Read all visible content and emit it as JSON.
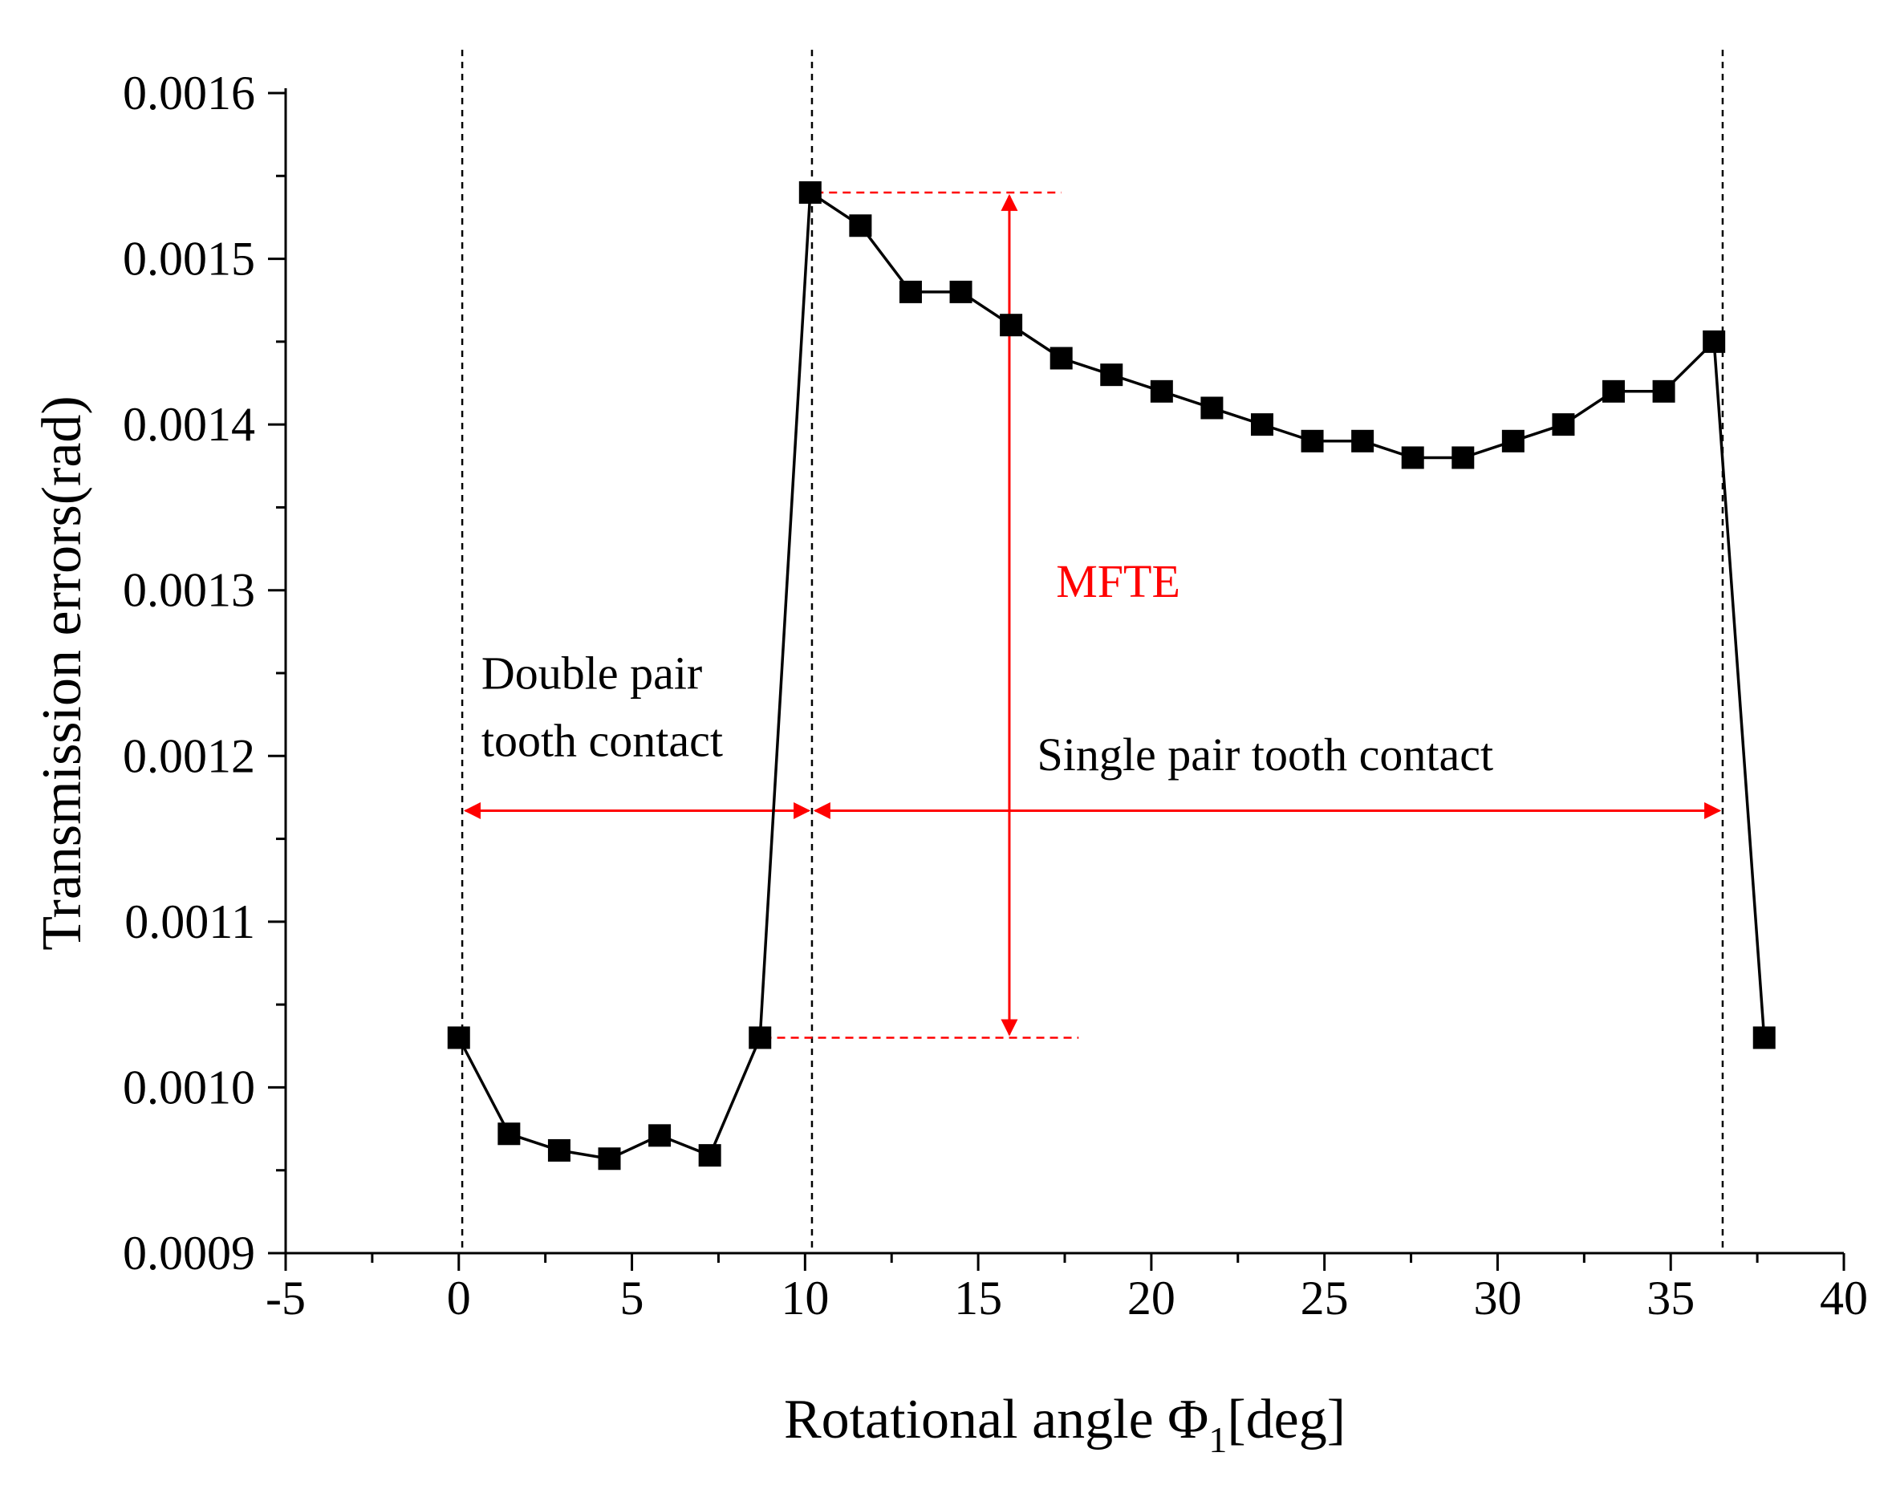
{
  "chart_data": {
    "type": "line",
    "title": "",
    "xlabel": "Rotational angle Φ",
    "xlabel_subscript": "1",
    "xlabel_unit": "[deg]",
    "ylabel": "Transmission errors(rad)",
    "xlim": [
      -5,
      40
    ],
    "ylim": [
      0.0009,
      0.0016
    ],
    "xticks": [
      -5,
      0,
      5,
      10,
      15,
      20,
      25,
      30,
      35,
      40
    ],
    "xtick_labels": [
      "-5",
      "0",
      "5",
      "10",
      "15",
      "20",
      "25",
      "30",
      "35",
      "40"
    ],
    "yticks": [
      0.0009,
      0.001,
      0.0011,
      0.0012,
      0.0013,
      0.0014,
      0.0015,
      0.0016
    ],
    "ytick_labels": [
      "0.0009",
      "0.0010",
      "0.0011",
      "0.0012",
      "0.0013",
      "0.0014",
      "0.0015",
      "0.0016"
    ],
    "grid": false,
    "series": [
      {
        "name": "Transmission error",
        "marker": "square",
        "color": "#000000",
        "x": [
          0,
          1.45,
          2.9,
          4.35,
          5.8,
          7.25,
          8.7,
          10.15,
          11.6,
          13.05,
          14.5,
          15.95,
          17.4,
          18.85,
          20.3,
          21.75,
          23.2,
          24.65,
          26.1,
          27.55,
          29.0,
          30.45,
          31.9,
          33.35,
          34.8,
          36.25,
          37.7
        ],
        "y": [
          0.00103,
          0.000972,
          0.000962,
          0.000957,
          0.000971,
          0.000959,
          0.00103,
          0.00154,
          0.00152,
          0.00148,
          0.00148,
          0.00146,
          0.00144,
          0.00143,
          0.00142,
          0.00141,
          0.0014,
          0.00139,
          0.00139,
          0.00138,
          0.00138,
          0.00139,
          0.0014,
          0.00142,
          0.00142,
          0.00145,
          0.00103
        ]
      }
    ],
    "reference_lines": {
      "vertical_dashed_x": [
        0.1,
        10.2,
        36.5
      ],
      "mfte_x": 15.9,
      "mfte_top": 0.00154,
      "mfte_bottom": 0.00103,
      "mfte_guide_x_end": [
        17.4,
        17.9
      ],
      "arrow_y": 0.001167,
      "double_arrow_x": [
        0.1,
        10.2
      ],
      "single_arrow_x": [
        10.2,
        36.5
      ]
    },
    "annotations": {
      "mfte": "MFTE",
      "double_line1": "Double pair",
      "double_line2": "tooth contact",
      "single": "Single pair tooth contact"
    },
    "colors": {
      "line": "#000000",
      "annotation_red": "#ff0000",
      "axis": "#000000"
    }
  }
}
